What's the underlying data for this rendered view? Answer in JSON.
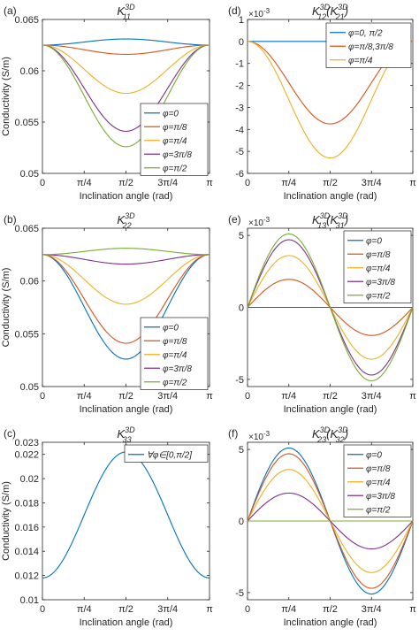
{
  "figure": {
    "colors": {
      "blue": "#0072BD",
      "orange": "#D95319",
      "yellow": "#EDB120",
      "purple": "#7E2F8E",
      "green": "#77AC30"
    }
  },
  "chart_data": [
    {
      "id": "a",
      "panel_label": "(a)",
      "type": "line",
      "title": {
        "main": "K",
        "sup": "3D",
        "sub": "11",
        "extra": []
      },
      "xlabel": "Inclination angle (rad)",
      "ylabel": "Conductivity (S/m)",
      "exponent": "",
      "x_ticks": [
        "0",
        "π/4",
        "π/2",
        "3π/4",
        "π"
      ],
      "x_range": [
        0,
        3.14159
      ],
      "ylim": [
        0.05,
        0.065
      ],
      "y_ticks": [
        0.05,
        0.055,
        0.06,
        0.065
      ],
      "y_tick_labels": [
        "0.05",
        "0.055",
        "0.06",
        "0.065"
      ],
      "legend": {
        "placement": "bottom-right",
        "entries": [
          "φ=0",
          "φ=π/8",
          "φ=π/4",
          "φ=3π/8",
          "φ=π/2"
        ]
      },
      "model": "cos_dip",
      "series": [
        {
          "name": "φ=0",
          "color": "#0072BD",
          "base": 0.0625,
          "amp": 0.0006
        },
        {
          "name": "φ=π/8",
          "color": "#D95319",
          "base": 0.0625,
          "amp": -0.0009
        },
        {
          "name": "φ=π/4",
          "color": "#EDB120",
          "base": 0.0625,
          "amp": -0.0047
        },
        {
          "name": "φ=3π/8",
          "color": "#7E2F8E",
          "base": 0.0625,
          "amp": -0.0084
        },
        {
          "name": "φ=π/2",
          "color": "#77AC30",
          "base": 0.0625,
          "amp": -0.0099
        }
      ]
    },
    {
      "id": "d",
      "panel_label": "(d)",
      "type": "line",
      "title": {
        "main": "K",
        "sup": "3D",
        "sub": "12",
        "extra": [
          "(K",
          "3D",
          "21",
          ")"
        ]
      },
      "xlabel": "Inclination angle (rad)",
      "ylabel": "",
      "exponent": "×10-3",
      "x_ticks": [
        "0",
        "π/4",
        "π/2",
        "3π/4",
        "π"
      ],
      "x_range": [
        0,
        3.14159
      ],
      "ylim": [
        -6,
        1
      ],
      "y_ticks": [
        -6,
        -5,
        -4,
        -3,
        -2,
        -1,
        0,
        1
      ],
      "y_tick_labels": [
        "-6",
        "-5",
        "-4",
        "-3",
        "-2",
        "-1",
        "0",
        "1"
      ],
      "legend": {
        "placement": "top-right",
        "entries": [
          "φ=0, π/2",
          "φ=π/8,3π/8",
          "φ=π/4"
        ]
      },
      "model": "neg_sin2",
      "series": [
        {
          "name": "φ=0, π/2",
          "color": "#0072BD",
          "amp": 0
        },
        {
          "name": "φ=π/8,3π/8",
          "color": "#D95319",
          "amp": 3.75
        },
        {
          "name": "φ=π/4",
          "color": "#EDB120",
          "amp": 5.3
        }
      ]
    },
    {
      "id": "b",
      "panel_label": "(b)",
      "type": "line",
      "title": {
        "main": "K",
        "sup": "3D",
        "sub": "22",
        "extra": []
      },
      "xlabel": "Inclination angle (rad)",
      "ylabel": "Conductivity (S/m)",
      "exponent": "",
      "x_ticks": [
        "0",
        "π/4",
        "π/2",
        "3π/4",
        "π"
      ],
      "x_range": [
        0,
        3.14159
      ],
      "ylim": [
        0.05,
        0.065
      ],
      "y_ticks": [
        0.05,
        0.055,
        0.06,
        0.065
      ],
      "y_tick_labels": [
        "0.05",
        "0.055",
        "0.06",
        "0.065"
      ],
      "legend": {
        "placement": "bottom-right",
        "entries": [
          "φ=0",
          "φ=π/8",
          "φ=π/4",
          "φ=3π/8",
          "φ=π/2"
        ]
      },
      "model": "cos_dip",
      "series": [
        {
          "name": "φ=0",
          "color": "#0072BD",
          "base": 0.0625,
          "amp": -0.0099
        },
        {
          "name": "φ=π/8",
          "color": "#D95319",
          "base": 0.0625,
          "amp": -0.0084
        },
        {
          "name": "φ=π/4",
          "color": "#EDB120",
          "base": 0.0625,
          "amp": -0.0047
        },
        {
          "name": "φ=3π/8",
          "color": "#7E2F8E",
          "base": 0.0625,
          "amp": -0.0009
        },
        {
          "name": "φ=π/2",
          "color": "#77AC30",
          "base": 0.0625,
          "amp": 0.0006
        }
      ]
    },
    {
      "id": "e",
      "panel_label": "(e)",
      "type": "line",
      "title": {
        "main": "K",
        "sup": "3D",
        "sub": "13",
        "extra": [
          "(K",
          "3D",
          "31",
          ")"
        ]
      },
      "xlabel": "Inclination angle (rad)",
      "ylabel": "",
      "exponent": "×10-3",
      "x_ticks": [
        "0",
        "π/4",
        "π/2",
        "3π/4",
        "π"
      ],
      "x_range": [
        0,
        3.14159
      ],
      "ylim": [
        -5.5,
        5.5
      ],
      "y_ticks": [
        -5,
        0,
        5
      ],
      "y_tick_labels": [
        "-5",
        "0",
        "5"
      ],
      "legend": {
        "placement": "top-right",
        "entries": [
          "φ=0",
          "φ=π/8",
          "φ=π/4",
          "φ=3π/8",
          "φ=π/2"
        ]
      },
      "model": "sin2",
      "series": [
        {
          "name": "φ=0",
          "color": "#0072BD",
          "amp": 0
        },
        {
          "name": "φ=π/8",
          "color": "#D95319",
          "amp": 1.95
        },
        {
          "name": "φ=π/4",
          "color": "#EDB120",
          "amp": 3.6
        },
        {
          "name": "φ=3π/8",
          "color": "#7E2F8E",
          "amp": 4.7
        },
        {
          "name": "φ=π/2",
          "color": "#77AC30",
          "amp": 5.1
        }
      ]
    },
    {
      "id": "c",
      "panel_label": "(c)",
      "type": "line",
      "title": {
        "main": "K",
        "sup": "3D",
        "sub": "33",
        "extra": []
      },
      "xlabel": "Inclination angle (rad)",
      "ylabel": "Conductivity (S/m)",
      "exponent": "",
      "x_ticks": [
        "0",
        "π/4",
        "π/2",
        "3π/4",
        "π"
      ],
      "x_range": [
        0,
        3.14159
      ],
      "ylim": [
        0.01,
        0.023
      ],
      "y_ticks": [
        0.01,
        0.012,
        0.014,
        0.016,
        0.018,
        0.02,
        0.022
      ],
      "y_tick_labels": [
        "0.01",
        "0.012",
        "0.014",
        "0.016",
        "0.018",
        "0.02",
        "0.022"
      ],
      "extra_tick_label": "0.023",
      "legend": {
        "placement": "top-right",
        "entries": [
          "∀φ∈[0,π/2]"
        ]
      },
      "model": "cos_dip",
      "series": [
        {
          "name": "∀φ∈[0,π/2]",
          "color": "#0072BD",
          "base": 0.0118,
          "amp": 0.0104
        }
      ]
    },
    {
      "id": "f",
      "panel_label": "(f)",
      "type": "line",
      "title": {
        "main": "K",
        "sup": "3D",
        "sub": "23",
        "extra": [
          "(K",
          "3D",
          "32",
          ")"
        ]
      },
      "xlabel": "Inclination angle (rad)",
      "ylabel": "",
      "exponent": "×10-3",
      "x_ticks": [
        "0",
        "π/4",
        "π/2",
        "3π/4",
        "π"
      ],
      "x_range": [
        0,
        3.14159
      ],
      "ylim": [
        -5.5,
        5.5
      ],
      "y_ticks": [
        -5,
        0,
        5
      ],
      "y_tick_labels": [
        "-5",
        "0",
        "5"
      ],
      "legend": {
        "placement": "top-right",
        "entries": [
          "φ=0",
          "φ=π/8",
          "φ=π/4",
          "φ=3π/8",
          "φ=π/2"
        ]
      },
      "model": "sin2",
      "series": [
        {
          "name": "φ=0",
          "color": "#0072BD",
          "amp": 5.1
        },
        {
          "name": "φ=π/8",
          "color": "#D95319",
          "amp": 4.7
        },
        {
          "name": "φ=π/4",
          "color": "#EDB120",
          "amp": 3.6
        },
        {
          "name": "φ=3π/8",
          "color": "#7E2F8E",
          "amp": 1.95
        },
        {
          "name": "φ=π/2",
          "color": "#77AC30",
          "amp": 0
        }
      ]
    }
  ]
}
